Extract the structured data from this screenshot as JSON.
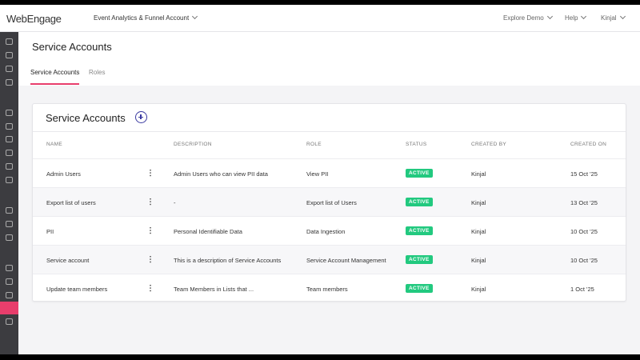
{
  "header": {
    "logo": "WebEngage",
    "account": "Event Analytics & Funnel Account",
    "nav": [
      "Explore Demo",
      "Help",
      "Kinjal"
    ]
  },
  "page": {
    "title": "Service Accounts",
    "tabs": [
      "Service Accounts",
      "Roles"
    ]
  },
  "card": {
    "title": "Service Accounts"
  },
  "table": {
    "columns": [
      "NAME",
      "DESCRIPTION",
      "ROLE",
      "STATUS",
      "CREATED BY",
      "CREATED ON"
    ],
    "rows": [
      [
        "Admin Users",
        "Admin Users who can view PII data",
        "View PII",
        "ACTIVE",
        "Kinjal",
        "15 Oct '25"
      ],
      [
        "Export list of users",
        "-",
        "Export list of Users",
        "ACTIVE",
        "Kinjal",
        "13 Oct '25"
      ],
      [
        "PII",
        "Personal Identifiable Data",
        "Data Ingestion",
        "ACTIVE",
        "Kinjal",
        "10 Oct '25"
      ],
      [
        "Service account",
        "This is a description of Service Accounts",
        "Service Account Management",
        "ACTIVE",
        "Kinjal",
        "10 Oct '25"
      ],
      [
        "Update team members",
        "Team Members in Lists that ...",
        "Team members",
        "ACTIVE",
        "Kinjal",
        "1 Oct '25"
      ]
    ]
  }
}
